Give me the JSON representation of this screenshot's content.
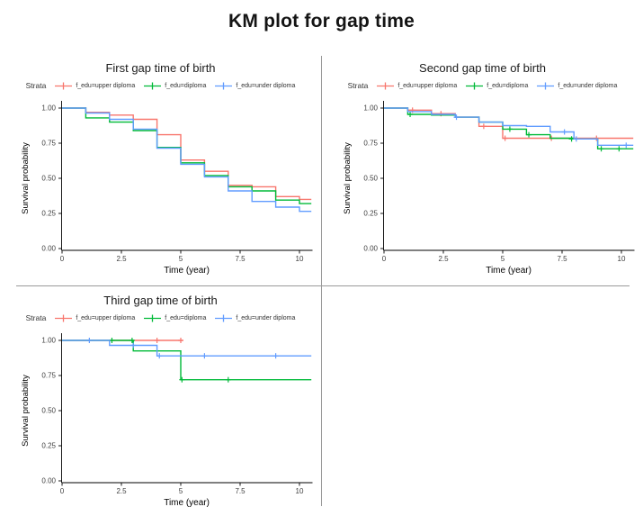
{
  "title": "KM plot for gap time",
  "legend": {
    "title": "Strata",
    "entries": [
      {
        "key": "upper-diploma",
        "label": "f_edu=upper diploma",
        "color": "#F8766D"
      },
      {
        "key": "diploma",
        "label": "f_edu=diploma",
        "color": "#00BA38"
      },
      {
        "key": "under-diploma",
        "label": "f_edu=under diploma",
        "color": "#619CFF"
      }
    ]
  },
  "axes": {
    "x_label": "Time (year)",
    "y_label": "Survival probability",
    "x_ticks": [
      "0",
      "2.5",
      "5",
      "7.5",
      "10"
    ],
    "x_tick_values": [
      0,
      2.5,
      5,
      7.5,
      10
    ],
    "y_ticks": [
      "1.00",
      "0.75",
      "0.50",
      "0.25",
      "0.00"
    ],
    "y_tick_values": [
      1.0,
      0.75,
      0.5,
      0.25,
      0.0
    ],
    "xlim": [
      0,
      10.5
    ],
    "ylim": [
      0,
      1
    ]
  },
  "chart_data": [
    {
      "type": "line",
      "variant": "km_step",
      "title": "First gap time of birth",
      "xlabel": "Time (year)",
      "ylabel": "Survival probability",
      "xlim": [
        0,
        10.5
      ],
      "ylim": [
        0,
        1
      ],
      "legend_title": "Strata",
      "series": [
        {
          "name": "f_edu=upper diploma",
          "key": "upper-diploma",
          "color": "#F8766D",
          "steps": [
            [
              0,
              1.0
            ],
            [
              1,
              0.97
            ],
            [
              2,
              0.95
            ],
            [
              3,
              0.92
            ],
            [
              4,
              0.81
            ],
            [
              5,
              0.63
            ],
            [
              6,
              0.55
            ],
            [
              7,
              0.45
            ],
            [
              8,
              0.44
            ],
            [
              9,
              0.37
            ],
            [
              10,
              0.35
            ]
          ],
          "end_time": 10.5,
          "censor_marks": []
        },
        {
          "name": "f_edu=diploma",
          "key": "diploma",
          "color": "#00BA38",
          "steps": [
            [
              0,
              1.0
            ],
            [
              1,
              0.93
            ],
            [
              2,
              0.9
            ],
            [
              3,
              0.84
            ],
            [
              4,
              0.72
            ],
            [
              5,
              0.61
            ],
            [
              6,
              0.52
            ],
            [
              7,
              0.44
            ],
            [
              8,
              0.41
            ],
            [
              9,
              0.345
            ],
            [
              10,
              0.32
            ]
          ],
          "end_time": 10.5,
          "censor_marks": []
        },
        {
          "name": "f_edu=under diploma",
          "key": "under-diploma",
          "color": "#619CFF",
          "steps": [
            [
              0,
              1.0
            ],
            [
              1,
              0.965
            ],
            [
              2,
              0.92
            ],
            [
              3,
              0.85
            ],
            [
              4,
              0.715
            ],
            [
              5,
              0.6
            ],
            [
              6,
              0.51
            ],
            [
              7,
              0.41
            ],
            [
              8,
              0.335
            ],
            [
              9,
              0.295
            ],
            [
              10,
              0.265
            ]
          ],
          "end_time": 10.5,
          "censor_marks": []
        }
      ]
    },
    {
      "type": "line",
      "variant": "km_step",
      "title": "Second gap time of birth",
      "xlabel": "Time (year)",
      "ylabel": "Survival probability",
      "xlim": [
        0,
        10.5
      ],
      "ylim": [
        0,
        1
      ],
      "legend_title": "Strata",
      "series": [
        {
          "name": "f_edu=upper diploma",
          "key": "upper-diploma",
          "color": "#F8766D",
          "steps": [
            [
              0,
              1.0
            ],
            [
              1,
              0.985
            ],
            [
              2,
              0.96
            ],
            [
              3,
              0.935
            ],
            [
              4,
              0.87
            ],
            [
              5,
              0.785
            ]
          ],
          "end_time": 10.5,
          "censor_marks": [
            [
              1.2,
              0.985
            ],
            [
              2.4,
              0.96
            ],
            [
              4.2,
              0.87
            ],
            [
              5.1,
              0.785
            ],
            [
              7.05,
              0.785
            ],
            [
              8.95,
              0.785
            ]
          ]
        },
        {
          "name": "f_edu=diploma",
          "key": "diploma",
          "color": "#00BA38",
          "steps": [
            [
              0,
              1.0
            ],
            [
              1,
              0.955
            ],
            [
              2,
              0.95
            ],
            [
              3,
              0.935
            ],
            [
              4,
              0.9
            ],
            [
              5,
              0.85
            ],
            [
              6,
              0.81
            ],
            [
              7,
              0.785
            ],
            [
              8,
              0.78
            ],
            [
              9,
              0.71
            ]
          ],
          "end_time": 10.5,
          "censor_marks": [
            [
              1.1,
              0.955
            ],
            [
              5.3,
              0.85
            ],
            [
              6.1,
              0.81
            ],
            [
              7.9,
              0.78
            ],
            [
              9.15,
              0.71
            ],
            [
              9.9,
              0.71
            ]
          ]
        },
        {
          "name": "f_edu=under diploma",
          "key": "under-diploma",
          "color": "#619CFF",
          "steps": [
            [
              0,
              1.0
            ],
            [
              1,
              0.975
            ],
            [
              2,
              0.955
            ],
            [
              3,
              0.935
            ],
            [
              4,
              0.9
            ],
            [
              5,
              0.875
            ],
            [
              6,
              0.87
            ],
            [
              7,
              0.83
            ],
            [
              8,
              0.78
            ],
            [
              9,
              0.735
            ]
          ],
          "end_time": 10.5,
          "censor_marks": [
            [
              3.05,
              0.935
            ],
            [
              7.6,
              0.83
            ],
            [
              8.1,
              0.78
            ],
            [
              10.2,
              0.735
            ]
          ]
        }
      ]
    },
    {
      "type": "line",
      "variant": "km_step",
      "title": "Third gap time of birth",
      "xlabel": "Time (year)",
      "ylabel": "Survival probability",
      "xlim": [
        0,
        10.5
      ],
      "ylim": [
        0,
        1
      ],
      "legend_title": "Strata",
      "series": [
        {
          "name": "f_edu=upper diploma",
          "key": "upper-diploma",
          "color": "#F8766D",
          "steps": [
            [
              0,
              1.0
            ]
          ],
          "end_time": 5.1,
          "censor_marks": [
            [
              4.0,
              1.0
            ],
            [
              5.0,
              1.0
            ]
          ]
        },
        {
          "name": "f_edu=diploma",
          "key": "diploma",
          "color": "#00BA38",
          "steps": [
            [
              0,
              1.0
            ],
            [
              3,
              0.925
            ],
            [
              5,
              0.72
            ]
          ],
          "end_time": 10.5,
          "censor_marks": [
            [
              2.1,
              1.0
            ],
            [
              2.95,
              1.0
            ],
            [
              5.05,
              0.72
            ],
            [
              7.0,
              0.72
            ]
          ]
        },
        {
          "name": "f_edu=under diploma",
          "key": "under-diploma",
          "color": "#619CFF",
          "steps": [
            [
              0,
              1.0
            ],
            [
              2,
              0.965
            ],
            [
              4,
              0.89
            ]
          ],
          "end_time": 10.5,
          "censor_marks": [
            [
              1.15,
              1.0
            ],
            [
              3.0,
              0.965
            ],
            [
              4.1,
              0.89
            ],
            [
              6.0,
              0.89
            ],
            [
              9.0,
              0.89
            ]
          ]
        }
      ]
    }
  ]
}
